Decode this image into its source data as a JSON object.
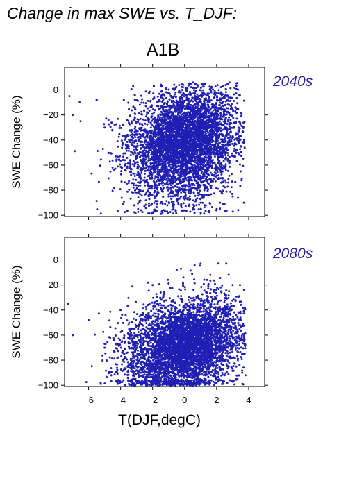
{
  "title": "Change in max SWE vs. T_DJF:",
  "scenario": "A1B",
  "colors": {
    "points": "#1f1fb4",
    "period_label": "#1f1fa8"
  },
  "chart_data": [
    {
      "type": "scatter",
      "period": "2040s",
      "xlabel": "",
      "ylabel": "SWE Change (%)",
      "xlim": [
        -7.5,
        5
      ],
      "ylim": [
        -101,
        18
      ],
      "x_ticks": [
        -6,
        -4,
        -2,
        0,
        2,
        4
      ],
      "y_ticks": [
        0,
        -20,
        -40,
        -60,
        -80,
        -100
      ],
      "y_tick_labels": [
        "0",
        "−20",
        "−40",
        "−60",
        "−80",
        "−100"
      ],
      "x_tick_labels_shown": false,
      "cloud_description": {
        "center_x": 0.0,
        "center_y": -42,
        "spread_x": 1.7,
        "spread_y": 22,
        "x_range_observed": [
          -7.4,
          3.8
        ],
        "y_range_observed": [
          -99,
          6
        ]
      },
      "n_points": 5000,
      "sample_points": [
        [
          -7.2,
          -5
        ],
        [
          -7.0,
          -20
        ],
        [
          -6.5,
          -25
        ],
        [
          -5.5,
          -8
        ],
        [
          -5.0,
          -30
        ],
        [
          -4.5,
          -62
        ],
        [
          -3.5,
          -45
        ],
        [
          -2.5,
          -70
        ],
        [
          -1.5,
          -20
        ],
        [
          -1.0,
          -85
        ],
        [
          0.0,
          -40
        ],
        [
          0.5,
          -60
        ],
        [
          1.0,
          -90
        ],
        [
          1.5,
          -75
        ],
        [
          2.0,
          -95
        ],
        [
          2.5,
          -50
        ],
        [
          2.8,
          6
        ],
        [
          3.0,
          -85
        ],
        [
          3.5,
          -65
        ],
        [
          3.7,
          -90
        ]
      ]
    },
    {
      "type": "scatter",
      "period": "2080s",
      "xlabel": "T(DJF,degC)",
      "ylabel": "SWE Change (%)",
      "xlim": [
        -7.5,
        5
      ],
      "ylim": [
        -101,
        18
      ],
      "x_ticks": [
        -6,
        -4,
        -2,
        0,
        2,
        4
      ],
      "x_tick_labels": [
        "−6",
        "−4",
        "−2",
        "0",
        "2",
        "4"
      ],
      "y_ticks": [
        0,
        -20,
        -40,
        -60,
        -80,
        -100
      ],
      "y_tick_labels": [
        "0",
        "−20",
        "−40",
        "−60",
        "−80",
        "−100"
      ],
      "cloud_description": {
        "center_x": 0.0,
        "center_y": -68,
        "spread_x": 1.8,
        "spread_y": 18,
        "x_range_observed": [
          -7.4,
          3.8
        ],
        "y_range_observed": [
          -100,
          -2
        ]
      },
      "n_points": 5000,
      "sample_points": [
        [
          -7.3,
          -35
        ],
        [
          -7.0,
          -60
        ],
        [
          -6.0,
          -48
        ],
        [
          -5.0,
          -70
        ],
        [
          -4.0,
          -40
        ],
        [
          -3.0,
          -85
        ],
        [
          -2.0,
          -20
        ],
        [
          -1.0,
          -95
        ],
        [
          -0.5,
          -8
        ],
        [
          0.0,
          -60
        ],
        [
          0.5,
          -75
        ],
        [
          1.0,
          -3
        ],
        [
          1.2,
          -90
        ],
        [
          1.8,
          -50
        ],
        [
          2.0,
          -98
        ],
        [
          2.6,
          -3
        ],
        [
          3.0,
          -20
        ],
        [
          3.3,
          -95
        ],
        [
          3.6,
          -90
        ],
        [
          3.8,
          -92
        ]
      ]
    }
  ]
}
